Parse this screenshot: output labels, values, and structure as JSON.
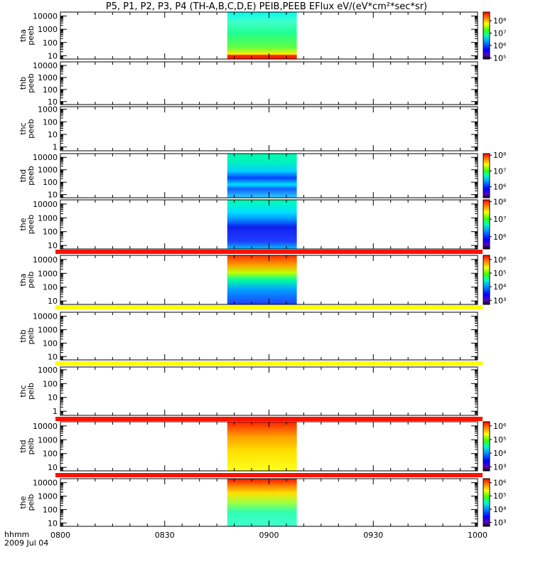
{
  "title": "P5, P1, P2, P3, P4 (TH-A,B,C,D,E) PEIB,PEEB EFlux eV/(eV*cm²*sec*sr)",
  "x_axis": {
    "ticks": [
      "0800",
      "0830",
      "0900",
      "0930",
      "1000"
    ],
    "label_top": "hhmm",
    "label_bottom": "2009 Jul 04"
  },
  "chart_data": {
    "type": "heatmap",
    "title": "P5, P1, P2, P3, P4 (TH-A,B,C,D,E) PEIB,PEEB EFlux eV/(eV*cm²*sec*sr)",
    "x_range": [
      "08:00",
      "10:00"
    ],
    "data_interval": [
      "08:48",
      "09:08"
    ],
    "y_scale": "log",
    "colormap": "rainbow",
    "panels": [
      {
        "probe": "tha",
        "product": "peeb",
        "ylabel": [
          "tha",
          "peeb"
        ],
        "yticks": [
          "10",
          "100",
          "1000",
          "10000"
        ],
        "ylog_range": [
          0.75,
          4.3
        ],
        "colorbar": {
          "ticks": [
            "10⁵",
            "10⁶",
            "10⁷",
            "10⁸"
          ],
          "range": [
            4.9,
            8.7
          ]
        },
        "has_data": true
      },
      {
        "probe": "thb",
        "product": "peeb",
        "ylabel": [
          "thb",
          "peeb"
        ],
        "yticks": [
          "10",
          "100",
          "1000",
          "10000"
        ],
        "ylog_range": [
          0.75,
          4.3
        ],
        "colorbar": null,
        "has_data": false
      },
      {
        "probe": "thc",
        "product": "peeb",
        "ylabel": [
          "thc",
          "peeb"
        ],
        "yticks": [
          "1",
          "10",
          "100",
          "1000"
        ],
        "ylog_range": [
          -0.3,
          3.2
        ],
        "colorbar": null,
        "has_data": false
      },
      {
        "probe": "thd",
        "product": "peeb",
        "ylabel": [
          "thd",
          "peeb"
        ],
        "yticks": [
          "10",
          "100",
          "1000",
          "10000"
        ],
        "ylog_range": [
          0.75,
          4.3
        ],
        "colorbar": {
          "ticks": [
            "10⁶",
            "10⁷",
            "10⁸"
          ],
          "range": [
            5.3,
            8.1
          ]
        },
        "has_data": true
      },
      {
        "probe": "the",
        "product": "peeb",
        "ylabel": [
          "the",
          "peeb"
        ],
        "yticks": [
          "10",
          "100",
          "1000",
          "10000"
        ],
        "ylog_range": [
          0.75,
          4.3
        ],
        "colorbar": {
          "ticks": [
            "10⁶",
            "10⁷",
            "10⁸"
          ],
          "range": [
            5.3,
            8.1
          ]
        },
        "has_data": true
      },
      {
        "probe": "tha",
        "product": "peib",
        "ylabel": [
          "tha",
          "peib"
        ],
        "yticks": [
          "10",
          "100",
          "1000",
          "10000"
        ],
        "ylog_range": [
          0.75,
          4.3
        ],
        "colorbar": {
          "ticks": [
            "10³",
            "10⁴",
            "10⁵",
            "10⁶"
          ],
          "range": [
            2.7,
            6.3
          ]
        },
        "has_data": true
      },
      {
        "probe": "thb",
        "product": "peib",
        "ylabel": [
          "thb",
          "peib"
        ],
        "yticks": [
          "10",
          "100",
          "1000",
          "10000"
        ],
        "ylog_range": [
          0.75,
          4.3
        ],
        "colorbar": null,
        "has_data": false
      },
      {
        "probe": "thc",
        "product": "peib",
        "ylabel": [
          "thc",
          "peib"
        ],
        "yticks": [
          "1",
          "10",
          "100",
          "1000"
        ],
        "ylog_range": [
          -0.3,
          3.2
        ],
        "colorbar": null,
        "has_data": false
      },
      {
        "probe": "thd",
        "product": "peib",
        "ylabel": [
          "thd",
          "peib"
        ],
        "yticks": [
          "10",
          "100",
          "1000",
          "10000"
        ],
        "ylog_range": [
          0.75,
          4.3
        ],
        "colorbar": {
          "ticks": [
            "10³",
            "10⁴",
            "10⁵",
            "10⁶"
          ],
          "range": [
            2.7,
            6.3
          ]
        },
        "has_data": true
      },
      {
        "probe": "the",
        "product": "peib",
        "ylabel": [
          "the",
          "peib"
        ],
        "yticks": [
          "10",
          "100",
          "1000",
          "10000"
        ],
        "ylog_range": [
          0.75,
          4.3
        ],
        "colorbar": {
          "ticks": [
            "10³",
            "10⁴",
            "10⁵",
            "10⁶"
          ],
          "range": [
            2.7,
            6.3
          ]
        },
        "has_data": true
      }
    ],
    "separator_bars": [
      {
        "after_panel": 5,
        "color": "#ff1000"
      },
      {
        "after_panel": 6,
        "color": "#ffff00"
      },
      {
        "after_panel": 7,
        "color": "#ffff00"
      },
      {
        "after_panel": 8,
        "color": "#ff1000"
      },
      {
        "after_panel": 9,
        "color": "#ff1000"
      }
    ]
  }
}
